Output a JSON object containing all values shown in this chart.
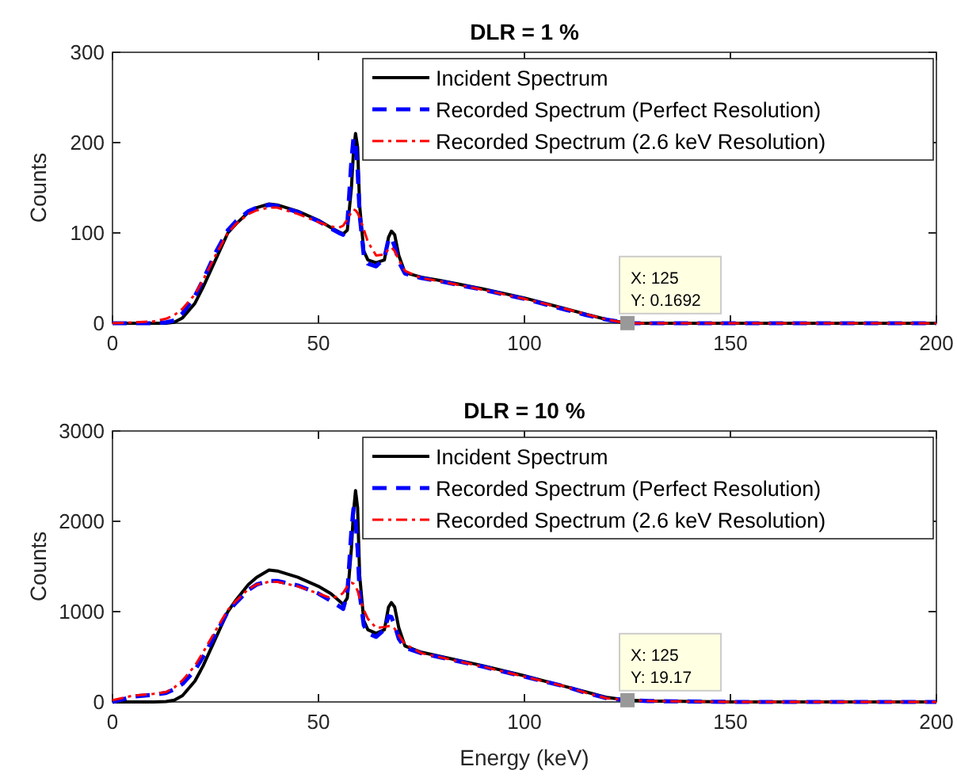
{
  "chart_data": [
    {
      "type": "line",
      "title": "DLR = 1 %",
      "ylabel": "Counts",
      "xlim": [
        0,
        200
      ],
      "xticks": [
        0,
        50,
        100,
        150,
        200
      ],
      "ylim": [
        0,
        300
      ],
      "yticks": [
        0,
        100,
        200,
        300
      ],
      "legend": "top right",
      "grid": false,
      "x": [
        0,
        5,
        10,
        13,
        15,
        17,
        20,
        22,
        25,
        28,
        30,
        33,
        35,
        38,
        40,
        45,
        50,
        53,
        55,
        56,
        57,
        58,
        58.5,
        59,
        59.5,
        60,
        61,
        62,
        64,
        66,
        67,
        67.7,
        68.5,
        69.5,
        71,
        75,
        80,
        90,
        100,
        110,
        115,
        120,
        125,
        130,
        150,
        200
      ],
      "series": [
        {
          "name": "Incident Spectrum",
          "color": "#000000",
          "line_style": "solid",
          "values": [
            0,
            0,
            0,
            0,
            1,
            6,
            22,
            40,
            70,
            100,
            110,
            123,
            128,
            132,
            131,
            124,
            114,
            106,
            101,
            99,
            103,
            150,
            190,
            210,
            195,
            130,
            80,
            70,
            67,
            70,
            95,
            102,
            98,
            75,
            56,
            51,
            47,
            38,
            28,
            16,
            10,
            4,
            0,
            0,
            0,
            0
          ]
        },
        {
          "name": "Recorded Spectrum (Perfect Resolution)",
          "color": "#0000ff",
          "line_style": "dashed",
          "values": [
            0,
            0,
            0,
            1,
            3,
            11,
            30,
            48,
            78,
            103,
            113,
            124,
            128,
            131,
            130,
            123,
            113,
            105,
            100,
            98,
            110,
            180,
            205,
            200,
            170,
            120,
            75,
            66,
            63,
            72,
            93,
            95,
            85,
            68,
            55,
            50,
            46,
            37,
            27,
            15,
            9,
            4,
            0,
            0,
            0,
            0
          ]
        },
        {
          "name": "Recorded Spectrum (2.6 keV Resolution)",
          "color": "#ff0000",
          "line_style": "dashdot",
          "values": [
            0,
            1,
            2,
            5,
            9,
            16,
            32,
            48,
            75,
            100,
            110,
            121,
            125,
            128,
            128,
            121,
            112,
            107,
            106,
            108,
            115,
            123,
            126,
            125,
            122,
            117,
            104,
            90,
            75,
            76,
            82,
            84,
            80,
            70,
            58,
            50,
            46,
            37,
            27,
            16,
            10,
            4,
            0,
            0,
            0,
            0
          ]
        }
      ],
      "annotations": [
        {
          "text": "X: 125\nY: 0.1692",
          "x": 125,
          "y": 0.1692
        }
      ]
    },
    {
      "type": "line",
      "title": "DLR = 10 %",
      "xlabel": "Energy (keV)",
      "ylabel": "Counts",
      "xlim": [
        0,
        200
      ],
      "xticks": [
        0,
        50,
        100,
        150,
        200
      ],
      "ylim": [
        0,
        3000
      ],
      "yticks": [
        0,
        1000,
        2000,
        3000
      ],
      "legend": "top right",
      "grid": false,
      "x": [
        0,
        5,
        10,
        13,
        15,
        17,
        20,
        22,
        25,
        28,
        30,
        33,
        35,
        38,
        40,
        45,
        50,
        53,
        55,
        56,
        57,
        58,
        58.5,
        59,
        59.5,
        60,
        61,
        62,
        64,
        66,
        67,
        67.7,
        68.5,
        69.5,
        71,
        75,
        80,
        90,
        100,
        110,
        115,
        120,
        125,
        130,
        150,
        200
      ],
      "series": [
        {
          "name": "Incident Spectrum",
          "color": "#000000",
          "line_style": "solid",
          "values": [
            0,
            0,
            0,
            5,
            20,
            70,
            230,
            400,
            700,
            1000,
            1130,
            1300,
            1380,
            1460,
            1450,
            1380,
            1280,
            1200,
            1120,
            1080,
            1150,
            1700,
            2100,
            2340,
            2150,
            1400,
            900,
            800,
            760,
            800,
            1050,
            1100,
            1050,
            820,
            620,
            550,
            500,
            400,
            290,
            170,
            110,
            50,
            20,
            10,
            0,
            0
          ]
        },
        {
          "name": "Recorded Spectrum (Perfect Resolution)",
          "color": "#0000ff",
          "line_style": "dashed",
          "values": [
            0,
            60,
            80,
            100,
            140,
            200,
            350,
            500,
            750,
            1000,
            1100,
            1240,
            1300,
            1340,
            1340,
            1290,
            1200,
            1120,
            1060,
            1030,
            1200,
            1900,
            2140,
            2000,
            1700,
            1200,
            850,
            760,
            720,
            800,
            950,
            940,
            850,
            700,
            600,
            540,
            490,
            390,
            280,
            170,
            100,
            40,
            20,
            10,
            0,
            0
          ]
        },
        {
          "name": "Recorded Spectrum (2.6 keV Resolution)",
          "color": "#ff0000",
          "line_style": "dashdot",
          "values": [
            20,
            70,
            90,
            110,
            160,
            240,
            400,
            550,
            790,
            1020,
            1120,
            1250,
            1300,
            1330,
            1330,
            1280,
            1200,
            1150,
            1170,
            1210,
            1280,
            1320,
            1310,
            1280,
            1230,
            1150,
            1020,
            920,
            820,
            830,
            840,
            840,
            810,
            740,
            640,
            540,
            490,
            390,
            280,
            170,
            100,
            40,
            20,
            10,
            0,
            0
          ]
        }
      ],
      "annotations": [
        {
          "text": "X: 125\nY: 19.17",
          "x": 125,
          "y": 19.17
        }
      ]
    }
  ]
}
